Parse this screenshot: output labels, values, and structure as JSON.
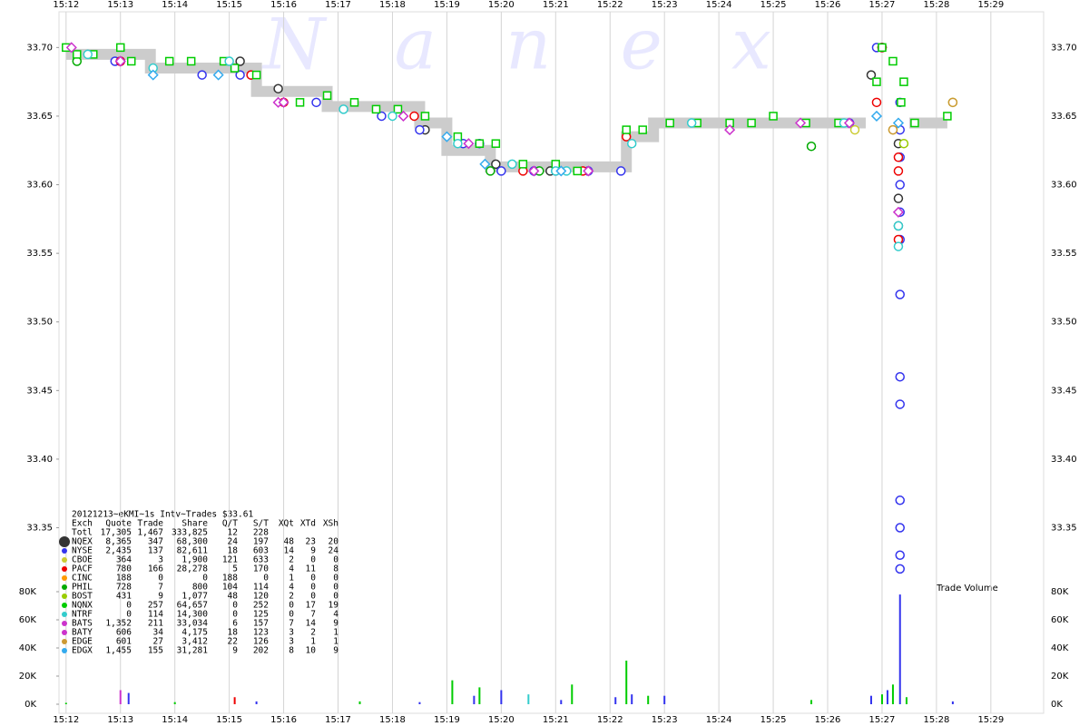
{
  "chart_data": {
    "type": "scatter",
    "watermark": "N a n e x",
    "volume_label": "Trade Volume",
    "xlim": [
      911.87,
      929.97
    ],
    "xticks": [
      {
        "value": 912,
        "label": "15:12"
      },
      {
        "value": 913,
        "label": "15:13"
      },
      {
        "value": 914,
        "label": "15:14"
      },
      {
        "value": 915,
        "label": "15:15"
      },
      {
        "value": 916,
        "label": "15:16"
      },
      {
        "value": 917,
        "label": "15:17"
      },
      {
        "value": 918,
        "label": "15:18"
      },
      {
        "value": 919,
        "label": "15:19"
      },
      {
        "value": 920,
        "label": "15:20"
      },
      {
        "value": 921,
        "label": "15:21"
      },
      {
        "value": 922,
        "label": "15:22"
      },
      {
        "value": 923,
        "label": "15:23"
      },
      {
        "value": 924,
        "label": "15:24"
      },
      {
        "value": 925,
        "label": "15:25"
      },
      {
        "value": 926,
        "label": "15:26"
      },
      {
        "value": 927,
        "label": "15:27"
      },
      {
        "value": 928,
        "label": "15:28"
      },
      {
        "value": 929,
        "label": "15:29"
      }
    ],
    "ylim": [
      33.31,
      33.73
    ],
    "yticks": [
      {
        "value": 33.7,
        "label": "33.70"
      },
      33.65,
      {
        "value": 33.6,
        "label": "33.60"
      },
      33.55,
      {
        "value": 33.5,
        "label": "33.50"
      },
      33.45,
      {
        "value": 33.4,
        "label": "33.40"
      },
      33.35
    ],
    "y2lim": [
      0,
      80000
    ],
    "y2ticks": [
      {
        "value": 80000,
        "label": "80K"
      },
      {
        "value": 60000,
        "label": "60K"
      },
      {
        "value": 40000,
        "label": "40K"
      },
      {
        "value": 20000,
        "label": "20K"
      },
      {
        "value": 0,
        "label": "0K"
      }
    ],
    "grid": true,
    "band": {
      "color": "#cccccc",
      "x": [
        912.0,
        913.55,
        913.55,
        915.5,
        915.5,
        916.8,
        916.8,
        918.5,
        918.5,
        919.0,
        919.0,
        919.8,
        919.8,
        922.3,
        922.3,
        922.8,
        922.8,
        926.7,
        null,
        927.5,
        928.2
      ],
      "values": [
        33.695,
        33.695,
        33.685,
        33.685,
        33.668,
        33.668,
        33.657,
        33.657,
        33.645,
        33.645,
        33.625,
        33.625,
        33.613,
        33.613,
        33.635,
        33.635,
        33.645,
        33.645,
        null,
        33.645,
        33.645
      ]
    },
    "series": [
      {
        "name": "NQEX",
        "color": "#333333",
        "marker": "circle",
        "x": [
          915.2,
          915.9,
          918.6,
          919.9,
          920.9,
          926.8,
          927.0,
          927.3,
          927.3,
          927.3
        ],
        "values": [
          33.69,
          33.67,
          33.64,
          33.615,
          33.61,
          33.68,
          33.7,
          33.63,
          33.59,
          33.57
        ]
      },
      {
        "name": "NYSE",
        "color": "#3333ee",
        "marker": "circle",
        "x": [
          912.9,
          913.0,
          914.5,
          915.2,
          915.4,
          916.6,
          917.8,
          918.5,
          919.3,
          919.6,
          920.0,
          920.6,
          921.0,
          921.6,
          922.2,
          926.4,
          926.9,
          927.0,
          927.33,
          927.33,
          927.33,
          927.33,
          927.33,
          927.33,
          927.33,
          927.33,
          927.33,
          927.33,
          927.33,
          927.33,
          927.33
        ],
        "values": [
          33.69,
          33.69,
          33.68,
          33.68,
          33.68,
          33.66,
          33.65,
          33.64,
          33.63,
          33.63,
          33.61,
          33.61,
          33.61,
          33.61,
          33.61,
          33.645,
          33.7,
          33.7,
          33.66,
          33.64,
          33.62,
          33.6,
          33.58,
          33.56,
          33.52,
          33.46,
          33.44,
          33.37,
          33.35,
          33.33,
          33.32
        ]
      },
      {
        "name": "CBOE",
        "color": "#cccc33",
        "marker": "circle",
        "x": [
          926.5,
          927.2
        ],
        "values": [
          33.64,
          33.64
        ]
      },
      {
        "name": "PACF",
        "color": "#ee0000",
        "marker": "circle",
        "x": [
          913.0,
          915.4,
          916.0,
          918.4,
          920.4,
          921.5,
          922.3,
          926.9,
          927.0,
          927.3,
          927.3,
          927.3
        ],
        "values": [
          33.69,
          33.68,
          33.66,
          33.65,
          33.61,
          33.61,
          33.635,
          33.66,
          33.7,
          33.62,
          33.61,
          33.56
        ]
      },
      {
        "name": "CINC",
        "color": "#ff9900",
        "marker": "circle",
        "x": [],
        "values": []
      },
      {
        "name": "PHIL",
        "color": "#00aa00",
        "marker": "circle",
        "x": [
          912.2,
          919.8,
          920.7,
          925.7
        ],
        "values": [
          33.69,
          33.61,
          33.61,
          33.628
        ]
      },
      {
        "name": "BOST",
        "color": "#99cc00",
        "marker": "circle",
        "x": [
          927.4,
          928.3
        ],
        "values": [
          33.63,
          33.66
        ]
      },
      {
        "name": "NQNX",
        "color": "#00cc00",
        "marker": "square",
        "x": [
          912.0,
          912.2,
          912.5,
          913.0,
          913.2,
          913.9,
          914.3,
          914.9,
          915.1,
          915.5,
          916.3,
          916.8,
          917.3,
          917.7,
          918.1,
          918.6,
          919.2,
          919.6,
          919.9,
          920.4,
          921.0,
          921.4,
          922.3,
          922.6,
          923.1,
          923.6,
          924.2,
          924.6,
          925.0,
          925.6,
          926.2,
          926.9,
          927.0,
          927.2,
          927.35,
          927.4,
          927.6,
          928.2
        ],
        "values": [
          33.7,
          33.695,
          33.695,
          33.7,
          33.69,
          33.69,
          33.69,
          33.69,
          33.685,
          33.68,
          33.66,
          33.665,
          33.66,
          33.655,
          33.655,
          33.65,
          33.635,
          33.63,
          33.63,
          33.615,
          33.615,
          33.61,
          33.64,
          33.64,
          33.645,
          33.645,
          33.645,
          33.645,
          33.65,
          33.645,
          33.645,
          33.675,
          33.7,
          33.69,
          33.66,
          33.675,
          33.645,
          33.65
        ]
      },
      {
        "name": "NTRF",
        "color": "#33cccc",
        "marker": "circle",
        "x": [
          912.4,
          913.6,
          915.0,
          917.1,
          918.0,
          919.2,
          920.2,
          921.0,
          921.2,
          922.4,
          923.5,
          926.3,
          927.3,
          927.3
        ],
        "values": [
          33.695,
          33.685,
          33.69,
          33.655,
          33.65,
          33.63,
          33.615,
          33.61,
          33.61,
          33.63,
          33.645,
          33.645,
          33.57,
          33.555
        ]
      },
      {
        "name": "BATS",
        "color": "#cc33cc",
        "marker": "diamond",
        "x": [
          912.1,
          913.0,
          915.9,
          918.2,
          919.4,
          920.6,
          921.6,
          924.2,
          925.5,
          926.4,
          927.3
        ],
        "values": [
          33.7,
          33.69,
          33.66,
          33.65,
          33.63,
          33.61,
          33.61,
          33.64,
          33.645,
          33.645,
          33.58
        ]
      },
      {
        "name": "BATY",
        "color": "#cc33cc",
        "marker": "diamond",
        "x": [
          913.0,
          916.0
        ],
        "values": [
          33.69,
          33.66
        ]
      },
      {
        "name": "EDGE",
        "color": "#cc9933",
        "marker": "circle",
        "x": [
          927.2,
          928.3
        ],
        "values": [
          33.64,
          33.66
        ]
      },
      {
        "name": "EDGX",
        "color": "#33aaee",
        "marker": "diamond",
        "x": [
          913.6,
          914.8,
          919.0,
          919.7,
          921.1,
          926.9,
          927.3
        ],
        "values": [
          33.68,
          33.68,
          33.635,
          33.615,
          33.61,
          33.65,
          33.645
        ]
      }
    ],
    "volume": {
      "x": [
        912.0,
        913.0,
        913.15,
        914.0,
        915.1,
        915.5,
        917.4,
        918.5,
        919.1,
        919.5,
        919.6,
        920.0,
        920.5,
        921.1,
        921.3,
        922.1,
        922.3,
        922.4,
        922.7,
        923.0,
        925.7,
        926.8,
        927.0,
        927.1,
        927.2,
        927.33,
        927.45,
        928.3
      ],
      "values": [
        1000,
        10000,
        8000,
        1500,
        5000,
        2000,
        2000,
        1500,
        17000,
        6000,
        12000,
        10000,
        7000,
        3000,
        14000,
        5000,
        31000,
        7000,
        6000,
        6000,
        3000,
        6000,
        7000,
        10000,
        14000,
        78000,
        5000,
        2000
      ],
      "colors": [
        "#00cc00",
        "#cc33cc",
        "#3333ee",
        "#00cc00",
        "#ee0000",
        "#3333ee",
        "#00cc00",
        "#3333ee",
        "#00cc00",
        "#3333ee",
        "#00cc00",
        "#3333ee",
        "#33cccc",
        "#3333ee",
        "#00cc00",
        "#3333ee",
        "#00cc00",
        "#3333ee",
        "#00cc00",
        "#3333ee",
        "#00cc00",
        "#3333ee",
        "#00cc00",
        "#3333ee",
        "#00cc00",
        "#3333ee",
        "#00cc00",
        "#3333ee"
      ]
    }
  },
  "stats": {
    "title": "20121213~eKMI~1s Intv~Trades $33.61",
    "header": [
      "Exch",
      "Quote",
      "Trade",
      "Share",
      "Q/T",
      "S/T",
      "XQt",
      "XTd",
      "XSh"
    ],
    "total": {
      "label": "Totl",
      "cells": [
        "17,305",
        "1,467",
        "333,825",
        "12",
        "228"
      ]
    },
    "rows": [
      [
        "8,365",
        "347",
        "68,300",
        "24",
        "197",
        "48",
        "23",
        "20"
      ],
      [
        "2,435",
        "137",
        "82,611",
        "18",
        "603",
        "14",
        "9",
        "24"
      ],
      [
        "364",
        "3",
        "1,900",
        "121",
        "633",
        "2",
        "0",
        "0"
      ],
      [
        "780",
        "166",
        "28,278",
        "5",
        "170",
        "4",
        "11",
        "8"
      ],
      [
        "188",
        "0",
        "0",
        "188",
        "0",
        "1",
        "0",
        "0"
      ],
      [
        "728",
        "7",
        "800",
        "104",
        "114",
        "4",
        "0",
        "0"
      ],
      [
        "431",
        "9",
        "1,077",
        "48",
        "120",
        "2",
        "0",
        "0"
      ],
      [
        "0",
        "257",
        "64,657",
        "0",
        "252",
        "0",
        "17",
        "19"
      ],
      [
        "0",
        "114",
        "14,300",
        "0",
        "125",
        "0",
        "7",
        "4"
      ],
      [
        "1,352",
        "211",
        "33,034",
        "6",
        "157",
        "7",
        "14",
        "9"
      ],
      [
        "606",
        "34",
        "4,175",
        "18",
        "123",
        "3",
        "2",
        "1"
      ],
      [
        "601",
        "27",
        "3,412",
        "22",
        "126",
        "3",
        "1",
        "1"
      ],
      [
        "1,455",
        "155",
        "31,281",
        "9",
        "202",
        "8",
        "10",
        "9"
      ]
    ]
  }
}
